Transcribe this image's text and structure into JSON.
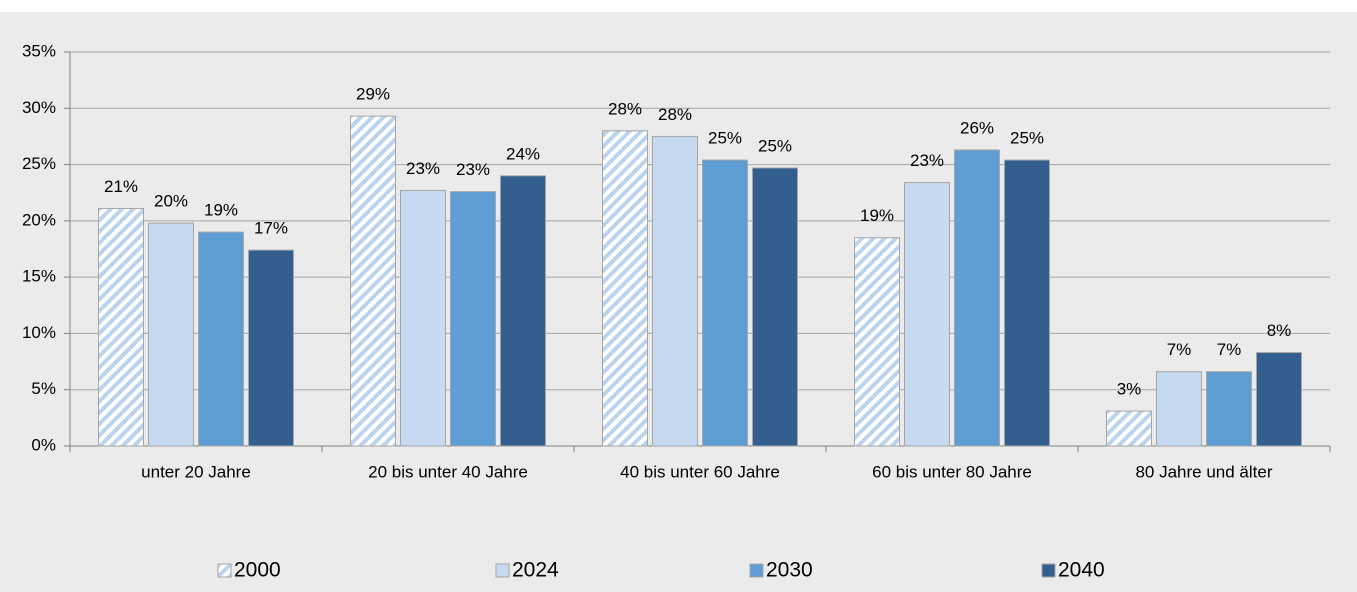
{
  "chart_data": {
    "type": "bar",
    "categories": [
      "unter 20 Jahre",
      "20 bis unter 40 Jahre",
      "40 bis unter 60 Jahre",
      "60 bis unter 80 Jahre",
      "80 Jahre und älter"
    ],
    "series": [
      {
        "name": "2000",
        "color": "#bcd3ee",
        "pattern": "hatch",
        "values": [
          21.1,
          29.3,
          28.0,
          18.5,
          3.1
        ],
        "value_labels": [
          "21%",
          "29%",
          "28%",
          "19%",
          "3%"
        ]
      },
      {
        "name": "2024",
        "color": "#c6d9f1",
        "values": [
          19.8,
          22.7,
          27.5,
          23.4,
          6.6
        ],
        "value_labels": [
          "20%",
          "23%",
          "28%",
          "23%",
          "7%"
        ]
      },
      {
        "name": "2030",
        "color": "#5f9ed4",
        "values": [
          19.0,
          22.6,
          25.4,
          26.3,
          6.6
        ],
        "value_labels": [
          "19%",
          "23%",
          "25%",
          "26%",
          "7%"
        ]
      },
      {
        "name": "2040",
        "color": "#335e90",
        "values": [
          17.4,
          24.0,
          24.7,
          25.4,
          8.3
        ],
        "value_labels": [
          "17%",
          "24%",
          "25%",
          "25%",
          "8%"
        ]
      }
    ],
    "ylim": [
      0,
      35
    ],
    "yticks": [
      {
        "value": 0,
        "label": "0%"
      },
      {
        "value": 5,
        "label": "5%"
      },
      {
        "value": 10,
        "label": "10%"
      },
      {
        "value": 15,
        "label": "15%"
      },
      {
        "value": 20,
        "label": "20%"
      },
      {
        "value": 25,
        "label": "25%"
      },
      {
        "value": 30,
        "label": "30%"
      },
      {
        "value": 35,
        "label": "35%"
      }
    ],
    "grid": true,
    "legend": "bottom"
  }
}
